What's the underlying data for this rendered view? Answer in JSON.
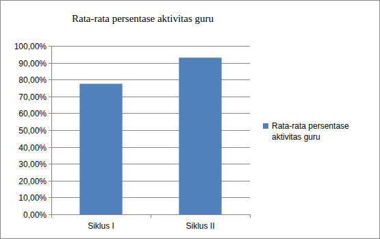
{
  "chart_data": {
    "type": "bar",
    "title": "Rata-rata persentase aktivitas guru",
    "categories": [
      "Siklus I",
      "Siklus II"
    ],
    "series": [
      {
        "name": "Rata-rata persentase aktivitas guru",
        "color": "#4f81bd",
        "values": [
          77.5,
          93
        ]
      }
    ],
    "ylim": [
      0,
      100
    ],
    "yticks": [
      {
        "value": 0,
        "label": "0,00%"
      },
      {
        "value": 10,
        "label": "10,00%"
      },
      {
        "value": 20,
        "label": "20,00%"
      },
      {
        "value": 30,
        "label": "30,00%"
      },
      {
        "value": 40,
        "label": "40,00%"
      },
      {
        "value": 50,
        "label": "50,00%"
      },
      {
        "value": 60,
        "label": "60,00%"
      },
      {
        "value": 70,
        "label": "70,00%"
      },
      {
        "value": 80,
        "label": "80,00%"
      },
      {
        "value": 90,
        "label": "90,00%"
      },
      {
        "value": 100,
        "label": "100,00%"
      }
    ],
    "grid": true,
    "legend": "right"
  }
}
